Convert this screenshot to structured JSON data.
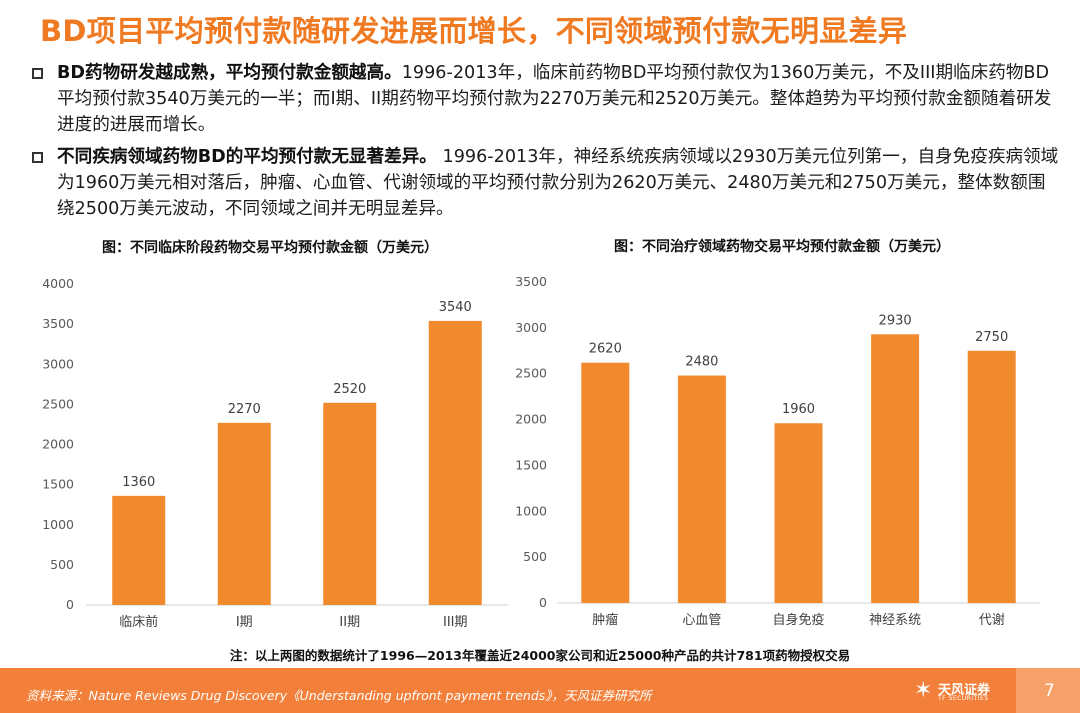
{
  "page": {
    "title": "BD项目平均预付款随研发进展而增长，不同领域预付款无明显差异",
    "page_number": "7"
  },
  "bullets": [
    {
      "bold": "BD药物研发越成熟，平均预付款金额越高。",
      "text": "1996-2013年，临床前药物BD平均预付款仅为1360万美元，不及III期临床药物BD平均预付款3540万美元的一半；而I期、II期药物平均预付款为2270万美元和2520万美元。整体趋势为平均预付款金额随着研发进度的进展而增长。"
    },
    {
      "bold": "不同疾病领域药物BD的平均预付款无显著差异。",
      "text": " 1996-2013年，神经系统疾病领域以2930万美元位列第一，自身免疫疾病领域为1960万美元相对落后，肿瘤、心血管、代谢领域的平均预付款分别为2620万美元、2480万美元和2750万美元，整体数额围绕2500万美元波动，不同领域之间并无明显差异。"
    }
  ],
  "chart_data": [
    {
      "type": "bar",
      "title": "图：不同临床阶段药物交易平均预付款金额（万美元）",
      "categories": [
        "临床前",
        "I期",
        "II期",
        "III期"
      ],
      "values": [
        1360,
        2270,
        2520,
        3540
      ],
      "ylim": [
        0,
        4000
      ],
      "yticks": [
        0,
        500,
        1000,
        1500,
        2000,
        2500,
        3000,
        3500,
        4000
      ],
      "color": "#f08a2c",
      "grid": false
    },
    {
      "type": "bar",
      "title": "图：不同治疗领域药物交易平均预付款金额（万美元）",
      "categories": [
        "肿瘤",
        "心血管",
        "自身免疫",
        "神经系统",
        "代谢"
      ],
      "values": [
        2620,
        2480,
        1960,
        2930,
        2750
      ],
      "ylim": [
        0,
        3500
      ],
      "yticks": [
        0,
        500,
        1000,
        1500,
        2000,
        2500,
        3000,
        3500
      ],
      "color": "#f08a2c",
      "grid": false
    }
  ],
  "note": "注：以上两图的数据统计了1996—2013年覆盖近24000家公司和近25000种产品的共计781项药物授权交易",
  "footer": {
    "source": "资料来源：Nature Reviews Drug Discovery《Understanding upfront payment trends》，天风证券研究所",
    "logo_cn": "天风证券",
    "logo_en": "TF SECURITIES"
  }
}
